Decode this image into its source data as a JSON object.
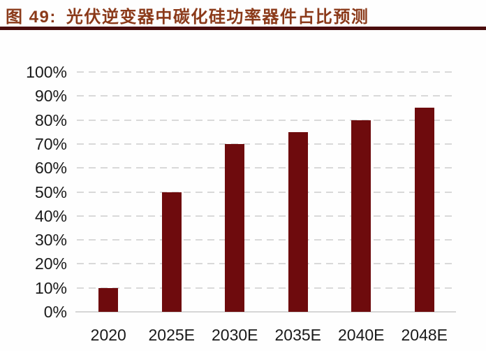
{
  "header": {
    "figure_label": "图 49:",
    "title": "光伏逆变器中碳化硅功率器件占比预测",
    "title_color": "#8B3A1A",
    "rule_color": "#4A0D0D"
  },
  "chart_data": {
    "type": "bar",
    "title": "光伏逆变器中碳化硅功率器件占比预测",
    "categories": [
      "2020",
      "2025E",
      "2030E",
      "2035E",
      "2040E",
      "2048E"
    ],
    "values": [
      10,
      50,
      70,
      75,
      80,
      85
    ],
    "unit": "%",
    "xlabel": "",
    "ylabel": "",
    "ylim": [
      0,
      100
    ],
    "y_tick_step": 10,
    "y_tick_labels": [
      "0%",
      "10%",
      "20%",
      "30%",
      "40%",
      "50%",
      "60%",
      "70%",
      "80%",
      "90%",
      "100%"
    ],
    "grid": "horizontal-dashed",
    "legend": "none",
    "bar_color": "#6E0B0D",
    "gridline_color": "#D9D9D9",
    "axis_line_color": "#D6D6D6",
    "tick_label_color": "#1A1A1A"
  }
}
